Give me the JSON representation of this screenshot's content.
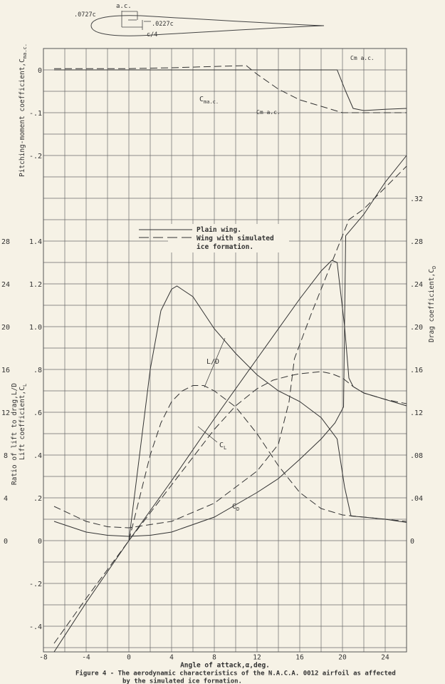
{
  "airfoil_diagram": {
    "label_ac": "a.c.",
    "label_vertical_offset": ".0727c",
    "label_horizontal_offset": ".0227c",
    "label_quarter_chord": "c/4"
  },
  "chart_data": {
    "type": "line",
    "xlabel": "Angle of attack,α,deg.",
    "xlim": [
      -8,
      26
    ],
    "x_ticks": [
      "-8",
      "-4",
      "0",
      "4",
      "8",
      "12",
      "16",
      "20",
      "24"
    ],
    "grid": true,
    "axes": {
      "cm": {
        "label": "Pitching-moment coefficient,C",
        "label_sub": "m",
        "label_sub2": "a.c.",
        "ticks": [
          "0",
          "-.1",
          "-.2"
        ],
        "tick_values": [
          0,
          -0.1,
          -0.2
        ]
      },
      "ld": {
        "label": "Ratio of lift to drag,L/D",
        "ticks": [
          "28",
          "24",
          "20",
          "16",
          "12",
          "8",
          "4",
          "0"
        ],
        "tick_values": [
          28,
          24,
          20,
          16,
          12,
          8,
          4,
          0
        ]
      },
      "cl": {
        "label": "Lift coefficient,C",
        "label_sub": "L",
        "ticks": [
          "1.4",
          "1.2",
          "1.0",
          ".8",
          ".6",
          ".4",
          ".2",
          "0",
          "-.2",
          "-.4"
        ],
        "tick_values": [
          1.4,
          1.2,
          1.0,
          0.8,
          0.6,
          0.4,
          0.2,
          0,
          -0.2,
          -0.4
        ]
      },
      "cd": {
        "label": "Drag coefficient,C",
        "label_sub": "D",
        "ticks": [
          ".32",
          ".28",
          ".24",
          ".20",
          ".16",
          ".12",
          ".08",
          ".04",
          "0"
        ],
        "tick_values": [
          0.32,
          0.28,
          0.24,
          0.2,
          0.16,
          0.12,
          0.08,
          0.04,
          0
        ]
      }
    },
    "legend": {
      "placement": "upper-left-center",
      "entries": [
        {
          "label": "Plain wing.",
          "style": "solid"
        },
        {
          "label": "Wing with simulated",
          "label2": "ice formation.",
          "style": "dashed"
        }
      ]
    },
    "curve_labels": {
      "ld": "L/D",
      "cl": "C",
      "cl_sub": "L",
      "cd": "C",
      "cd_sub": "D",
      "cm": "C",
      "cm_sub": "m",
      "cm_sub2": "a.c."
    },
    "series": [
      {
        "name": "Plain wing.",
        "quantity": "CL",
        "axis": "cl",
        "style": "solid",
        "x": [
          -7,
          -4,
          0,
          4,
          8,
          12,
          16,
          18,
          19,
          19.5,
          20.2,
          20.6,
          21,
          22,
          24,
          26
        ],
        "y": [
          -0.52,
          -0.29,
          0.0,
          0.28,
          0.57,
          0.85,
          1.13,
          1.26,
          1.31,
          1.3,
          1.0,
          0.76,
          0.72,
          0.69,
          0.66,
          0.63
        ]
      },
      {
        "name": "Wing with simulated ice formation.",
        "quantity": "CL",
        "axis": "cl",
        "style": "dashed",
        "x": [
          -7,
          -4,
          0,
          4,
          8,
          10,
          12,
          13.5,
          15,
          16,
          18,
          19,
          20,
          21,
          22,
          24,
          26
        ],
        "y": [
          -0.48,
          -0.27,
          0,
          0.26,
          0.52,
          0.63,
          0.71,
          0.75,
          0.77,
          0.78,
          0.79,
          0.78,
          0.76,
          0.72,
          0.69,
          0.66,
          0.64
        ]
      },
      {
        "name": "Plain wing.",
        "quantity": "CD",
        "axis": "cd",
        "style": "solid",
        "x": [
          -7,
          -4,
          -2,
          0,
          2,
          4,
          8,
          12,
          14,
          16,
          18,
          19.3,
          20.1,
          20.3,
          22,
          24,
          26
        ],
        "y": [
          0.018,
          0.008,
          0.005,
          0.004,
          0.005,
          0.008,
          0.022,
          0.045,
          0.058,
          0.076,
          0.095,
          0.11,
          0.125,
          0.285,
          0.305,
          0.335,
          0.36
        ]
      },
      {
        "name": "Wing with simulated ice formation.",
        "quantity": "CD",
        "axis": "cd",
        "style": "dashed",
        "x": [
          -7,
          -4,
          -2,
          0,
          4,
          8,
          12,
          14,
          15,
          15.5,
          17,
          19,
          20.6,
          22,
          24,
          26
        ],
        "y": [
          0.032,
          0.018,
          0.013,
          0.012,
          0.018,
          0.035,
          0.065,
          0.09,
          0.13,
          0.17,
          0.21,
          0.26,
          0.3,
          0.31,
          0.33,
          0.35
        ]
      },
      {
        "name": "Plain wing.",
        "quantity": "L/D",
        "axis": "ld",
        "style": "solid",
        "x": [
          0,
          1,
          2,
          3,
          4,
          4.5,
          6,
          8,
          10,
          12,
          14,
          16,
          18,
          19.5,
          20.2,
          20.8,
          22,
          24,
          26
        ],
        "y": [
          0,
          8,
          16,
          21.5,
          23.5,
          23.8,
          22.8,
          19.8,
          17.5,
          15.5,
          14,
          13,
          11.5,
          9.5,
          5,
          2.3,
          2.2,
          2.0,
          1.7
        ]
      },
      {
        "name": "Wing with simulated ice formation.",
        "quantity": "L/D",
        "axis": "ld",
        "style": "dashed",
        "x": [
          0,
          1,
          2,
          3,
          4,
          5,
          6,
          7,
          8,
          10,
          12,
          14,
          16,
          18,
          20,
          22,
          24,
          26
        ],
        "y": [
          0,
          4,
          8,
          11,
          13,
          14,
          14.5,
          14.5,
          14,
          12.5,
          10,
          7,
          4.5,
          3,
          2.4,
          2.2,
          2.0,
          1.8
        ]
      },
      {
        "name": "Plain wing.",
        "quantity": "Cm a.c.",
        "axis": "cm",
        "style": "solid",
        "x": [
          -7,
          0,
          4,
          8,
          12,
          16,
          19.5,
          20.3,
          21,
          22,
          24,
          26
        ],
        "y": [
          0,
          0,
          0,
          0,
          0,
          0,
          0,
          -0.05,
          -0.09,
          -0.095,
          -0.092,
          -0.09
        ]
      },
      {
        "name": "Wing with simulated ice formation.",
        "quantity": "Cm a.c.",
        "axis": "cm",
        "style": "dashed",
        "x": [
          -7,
          0,
          4,
          8,
          11,
          12,
          14,
          16,
          18,
          20,
          22,
          24,
          26
        ],
        "y": [
          0.003,
          0.003,
          0.005,
          0.008,
          0.01,
          -0.01,
          -0.045,
          -0.07,
          -0.085,
          -0.1,
          -0.1,
          -0.1,
          -0.1
        ]
      }
    ],
    "colors": {
      "background": "#f6f2e6",
      "ink": "#333333",
      "grid": "#666666"
    }
  },
  "caption": {
    "line1": "Figure 4 - The aerodynamic characteristics of the N.A.C.A. 0012 airfoil as affected",
    "line2": "by the simulated ice formation."
  }
}
